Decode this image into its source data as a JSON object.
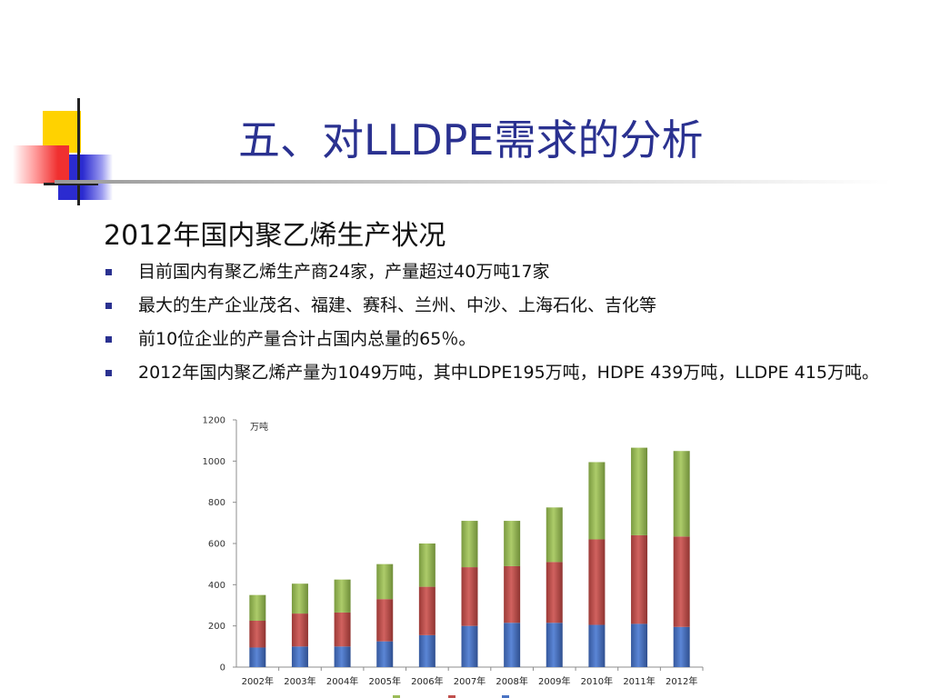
{
  "slide": {
    "title": "五、对LLDPE需求的分析",
    "subtitle": "2012年国内聚乙烯生产状况",
    "bullets": [
      "目前国内有聚乙烯生产商24家，产量超过40万吨17家",
      "最大的生产企业茂名、福建、赛科、兰州、中沙、上海石化、吉化等",
      "前10位企业的产量合计占国内总量的65％。",
      "2012年国内聚乙烯产量为1049万吨，其中LDPE195万吨，HDPE 439万吨，LLDPE 415万吨。"
    ]
  },
  "colors": {
    "title": "#2a3190",
    "bullet": "#2a3190",
    "series_blue": "#4b74c3",
    "series_red": "#c0504d",
    "series_green": "#9bbb59"
  },
  "chart_data": {
    "type": "bar",
    "stacked": true,
    "unit_label": "万吨",
    "categories": [
      "2002年",
      "2003年",
      "2004年",
      "2005年",
      "2006年",
      "2007年",
      "2008年",
      "2009年",
      "2010年",
      "2011年",
      "2012年"
    ],
    "series": [
      {
        "color": "#4b74c3",
        "values": [
          95,
          100,
          100,
          125,
          155,
          200,
          215,
          215,
          205,
          210,
          195
        ]
      },
      {
        "color": "#c0504d",
        "values": [
          130,
          160,
          165,
          205,
          235,
          285,
          275,
          295,
          415,
          430,
          439
        ]
      },
      {
        "color": "#9bbb59",
        "values": [
          125,
          145,
          160,
          170,
          210,
          225,
          220,
          265,
          375,
          425,
          415
        ]
      }
    ],
    "yticks": [
      "0",
      "200",
      "400",
      "600",
      "800",
      "1000",
      "1200"
    ],
    "ylim": [
      0,
      1200
    ],
    "grid": false,
    "legend": "bottom"
  }
}
